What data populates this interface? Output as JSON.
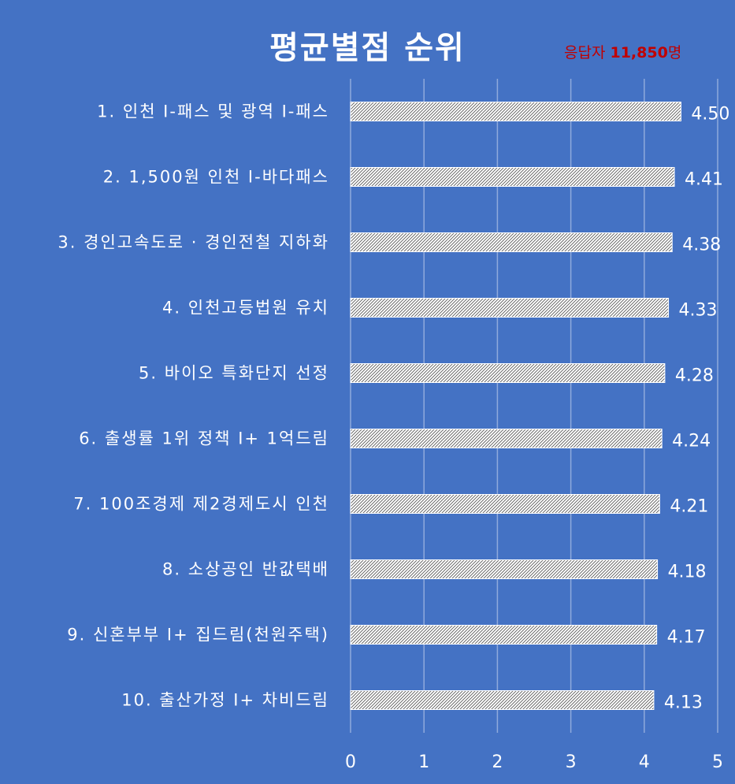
{
  "title": "평균별점 순위",
  "respondents": {
    "prefix": "응답자 ",
    "count": "11,850",
    "suffix": "명"
  },
  "colors": {
    "background": "#4472c4",
    "text": "#ffffff",
    "grid": "#8faadc",
    "accent": "#c00000"
  },
  "chart_data": {
    "type": "bar",
    "orientation": "horizontal",
    "categories": [
      "1. 인천 I-패스 및 광역 I-패스",
      "2. 1,500원 인천 I-바다패스",
      "3. 경인고속도로 · 경인전철 지하화",
      "4. 인천고등법원 유치",
      "5. 바이오 특화단지 선정",
      "6. 출생률 1위 정책  I+ 1억드림",
      "7. 100조경제 제2경제도시 인천",
      "8. 소상공인 반값택배",
      "9. 신혼부부 I+ 집드림(천원주택)",
      "10. 출산가정 I+ 차비드림"
    ],
    "values": [
      4.5,
      4.41,
      4.38,
      4.33,
      4.28,
      4.24,
      4.21,
      4.18,
      4.17,
      4.13
    ],
    "value_labels": [
      "4.50",
      "4.41",
      "4.38",
      "4.33",
      "4.28",
      "4.24",
      "4.21",
      "4.18",
      "4.17",
      "4.13"
    ],
    "xlim": [
      0,
      5
    ],
    "xticks": [
      "0",
      "1",
      "2",
      "3",
      "4",
      "5"
    ],
    "grid": true,
    "bar_fill": "hatched white"
  }
}
